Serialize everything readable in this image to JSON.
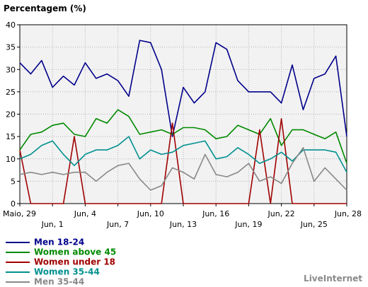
{
  "chart_data": {
    "type": "line",
    "title": "Percentagem (%)",
    "xlabel": "",
    "ylabel": "",
    "ylim": [
      0,
      40
    ],
    "yticks": [
      0,
      5,
      10,
      15,
      20,
      25,
      30,
      35,
      40
    ],
    "grid": true,
    "legend_position": "bottom-left",
    "x_tick_labels": [
      "Maio, 29",
      "Jun, 1",
      "Jun, 4",
      "Jun, 7",
      "Jun, 10",
      "Jun, 13",
      "Jun, 16",
      "Jun, 19",
      "Jun, 22",
      "Jun, 25",
      "Jun, 28"
    ],
    "categories": [
      "Maio, 29",
      "Maio, 30",
      "Maio, 31",
      "Jun, 1",
      "Jun, 2",
      "Jun, 3",
      "Jun, 4",
      "Jun, 5",
      "Jun, 6",
      "Jun, 7",
      "Jun, 8",
      "Jun, 9",
      "Jun, 10",
      "Jun, 11",
      "Jun, 12",
      "Jun, 13",
      "Jun, 14",
      "Jun, 15",
      "Jun, 16",
      "Jun, 17",
      "Jun, 18",
      "Jun, 19",
      "Jun, 20",
      "Jun, 21",
      "Jun, 22",
      "Jun, 23",
      "Jun, 24",
      "Jun, 25",
      "Jun, 26",
      "Jun, 27",
      "Jun, 28"
    ],
    "series": [
      {
        "name": "Men 18-24",
        "color": "#00008b",
        "values": [
          31.5,
          29,
          32,
          26,
          28.5,
          26.5,
          31.5,
          28,
          29,
          27.5,
          24,
          36.5,
          36,
          30,
          15,
          26,
          22.5,
          25,
          36,
          34.5,
          27.5,
          25,
          25,
          25,
          22.5,
          31,
          21,
          28,
          29,
          33,
          15
        ]
      },
      {
        "name": "Women above 45",
        "color": "#008a00",
        "values": [
          12,
          15.5,
          16,
          17.5,
          18,
          15.5,
          15,
          19,
          18,
          21,
          19.5,
          15.5,
          16,
          16.5,
          15.5,
          17,
          17,
          16.5,
          14.5,
          15,
          17.5,
          16.5,
          15.5,
          19,
          13,
          16.5,
          16.5,
          15.5,
          14.5,
          16,
          9
        ]
      },
      {
        "name": "Women under 18",
        "color": "#a00000",
        "values": [
          12,
          0,
          0,
          0,
          0,
          15,
          0,
          0,
          0,
          0,
          0,
          0,
          0,
          0,
          18,
          0,
          0,
          0,
          0,
          0,
          0,
          0,
          16.5,
          0,
          19,
          0,
          0,
          0,
          0,
          0,
          0
        ]
      },
      {
        "name": "Women 35-44",
        "color": "#009090",
        "values": [
          10,
          11,
          13,
          14,
          11,
          8.5,
          11,
          12,
          12,
          13,
          15,
          10,
          12,
          11,
          11.5,
          13,
          13.5,
          14,
          10,
          10.5,
          12.5,
          11,
          9,
          10,
          11.5,
          9.5,
          12,
          12,
          12,
          11.5,
          7
        ]
      },
      {
        "name": "Men 35-44",
        "color": "#888888",
        "values": [
          6.5,
          7,
          6.5,
          7,
          6.5,
          7,
          7,
          5,
          7,
          8.5,
          9,
          5.5,
          3,
          4,
          8,
          7,
          5.5,
          11,
          6.5,
          6,
          7,
          9,
          5,
          6,
          4.5,
          9,
          12.5,
          5,
          8,
          5.5,
          3
        ]
      }
    ]
  },
  "brand": "LiveInternet"
}
